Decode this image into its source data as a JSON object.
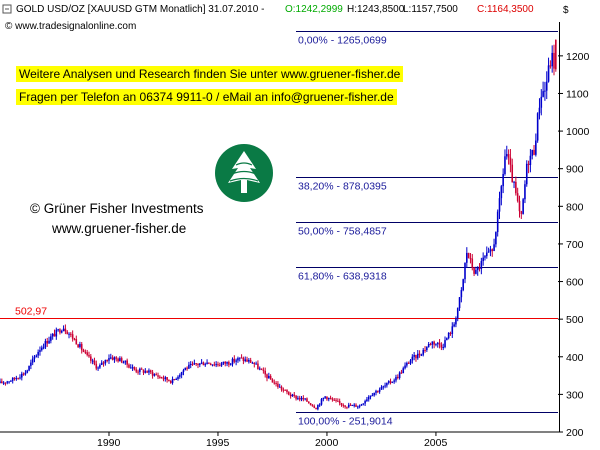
{
  "header": {
    "instrument": "GOLD USD/OZ [XAUUSD GTM  Monatlich] 31.07.2010 - ",
    "open": "O:1242,2999",
    "high": "H:1243,8500",
    "low": "L:1157,7500",
    "close": "C:1164,3500",
    "source": "© www.tradesignalonline.com",
    "currency": "$"
  },
  "banner": {
    "line1": "Weitere Analysen und Research finden Sie unter www.gruener-fisher.de",
    "line2": "Fragen per Telefon an 06374 9911-0 / eMail an info@gruener-fisher.de"
  },
  "watermark": {
    "line1": "© Grüner Fisher Investments",
    "line2": "www.gruener-fisher.de"
  },
  "colors": {
    "up_candle": "#0000cc",
    "down_candle": "#cc0033",
    "fib_line": "#000066",
    "fib_text": "#1a1a9a",
    "resistance": "#ee0000",
    "logo": "#0a7a45"
  },
  "chart_data": {
    "type": "candlestick",
    "title": "GOLD USD/OZ [XAUUSD GTM Monatlich]",
    "xlim": [
      1985.0,
      2010.6
    ],
    "ylim": [
      200,
      1290
    ],
    "x_ticks": [
      1990,
      1995,
      2000,
      2005
    ],
    "y_ticks": [
      200,
      300,
      400,
      500,
      600,
      700,
      800,
      900,
      1000,
      1100,
      1200
    ],
    "price_path": [
      [
        1985.0,
        330
      ],
      [
        1985.6,
        340
      ],
      [
        1986.2,
        360
      ],
      [
        1986.8,
        420
      ],
      [
        1987.3,
        450
      ],
      [
        1987.9,
        480
      ],
      [
        1988.5,
        440
      ],
      [
        1989.0,
        400
      ],
      [
        1989.5,
        370
      ],
      [
        1990.0,
        400
      ],
      [
        1990.6,
        390
      ],
      [
        1991.2,
        365
      ],
      [
        1991.8,
        360
      ],
      [
        1992.4,
        345
      ],
      [
        1992.9,
        335
      ],
      [
        1993.5,
        370
      ],
      [
        1994.0,
        380
      ],
      [
        1994.5,
        385
      ],
      [
        1995.0,
        380
      ],
      [
        1995.5,
        385
      ],
      [
        1996.0,
        395
      ],
      [
        1996.6,
        385
      ],
      [
        1997.2,
        350
      ],
      [
        1997.8,
        320
      ],
      [
        1998.4,
        295
      ],
      [
        1999.0,
        285
      ],
      [
        1999.5,
        265
      ],
      [
        1999.9,
        295
      ],
      [
        2000.4,
        280
      ],
      [
        2000.9,
        270
      ],
      [
        2001.5,
        270
      ],
      [
        2002.0,
        300
      ],
      [
        2002.6,
        320
      ],
      [
        2003.2,
        345
      ],
      [
        2003.8,
        390
      ],
      [
        2004.3,
        410
      ],
      [
        2004.8,
        440
      ],
      [
        2005.3,
        430
      ],
      [
        2005.8,
        480
      ],
      [
        2006.2,
        580
      ],
      [
        2006.4,
        680
      ],
      [
        2006.8,
        620
      ],
      [
        2007.2,
        660
      ],
      [
        2007.6,
        680
      ],
      [
        2007.9,
        800
      ],
      [
        2008.2,
        950
      ],
      [
        2008.4,
        900
      ],
      [
        2008.7,
        820
      ],
      [
        2008.9,
        760
      ],
      [
        2009.2,
        920
      ],
      [
        2009.5,
        950
      ],
      [
        2009.8,
        1100
      ],
      [
        2010.0,
        1110
      ],
      [
        2010.3,
        1200
      ],
      [
        2010.5,
        1164
      ]
    ],
    "last": {
      "open": 1242.2999,
      "high": 1243.85,
      "low": 1157.75,
      "close": 1164.35
    },
    "resistance": {
      "value": 502.97,
      "label": "502,97"
    },
    "fib_levels": [
      {
        "value": 1265.0699,
        "label": "0,00% - 1265,0699"
      },
      {
        "value": 878.0395,
        "label": "38,20% - 878,0395"
      },
      {
        "value": 758.4857,
        "label": "50,00% - 758,4857"
      },
      {
        "value": 638.9318,
        "label": "61,80% - 638,9318"
      },
      {
        "value": 251.9014,
        "label": "100,00% - 251,9014"
      }
    ],
    "grid": false
  }
}
